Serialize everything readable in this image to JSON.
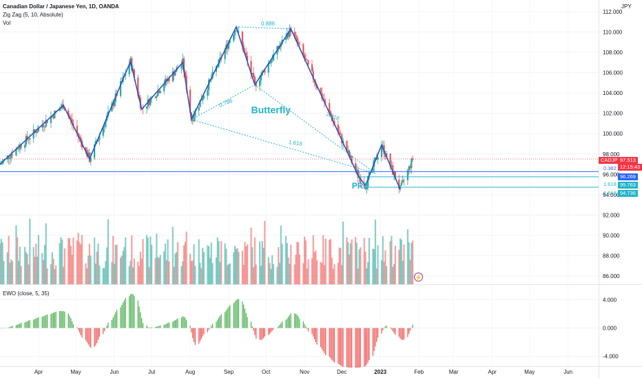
{
  "header": {
    "title": "Canadian Dollar / Japanese Yen, 1D, OANDA",
    "indicator_1": "Zig Zag (5, 10, Absolute)",
    "indicator_2": "Vol",
    "ewo_label": "EWO (close, 5, 35)",
    "currency": "JPY"
  },
  "price_tags": {
    "symbol": "CADJPY",
    "last_price": "97.513",
    "countdown": "12:15:43",
    "level_0382_label": "0.382",
    "level_0382_value": "96.269",
    "level_1618_label": "1.618",
    "level_1618_value": "95.763",
    "level_2618_label": "2.618",
    "level_2618_value": "94.736"
  },
  "annotations": {
    "pattern_name": "Butterfly",
    "prz": "PRZ",
    "ratio_top": "0.886",
    "ratio_xa": "0.786",
    "ratio_bc": "2.618",
    "ratio_xd": "1.618"
  },
  "colors": {
    "up": "#26a69a",
    "down": "#ef5350",
    "zigzag": "#1e56c8",
    "harmonic": "#21b3c8",
    "last_price": "#f23645",
    "level_blue": "#2962ff",
    "ewo_up": "#4caf50",
    "ewo_down": "#ef5350"
  },
  "chart_data": {
    "type": "candlestick",
    "price_axis": {
      "ylim": [
        85.2,
        112.8
      ],
      "ticks": [
        "112.000",
        "110.000",
        "108.000",
        "106.000",
        "104.000",
        "102.000",
        "100.000",
        "98.000",
        "96.000",
        "94.000",
        "92.000",
        "90.000",
        "88.000",
        "86.000"
      ],
      "tick_values": [
        112,
        110,
        108,
        106,
        104,
        102,
        100,
        98,
        96,
        94,
        92,
        90,
        88,
        86
      ]
    },
    "ewo_axis": {
      "ylim": [
        -5.0,
        5.5
      ],
      "ticks": [
        "4.000",
        "0.000",
        "-4.000"
      ],
      "tick_values": [
        4,
        0,
        -4
      ]
    },
    "x_axis": {
      "start_date": "2022-03-01",
      "end_date": "2023-06-25",
      "ticks": [
        "Apr",
        "May",
        "Jun",
        "Jul",
        "Aug",
        "Sep",
        "Oct",
        "Nov",
        "Dec",
        "2023",
        "Feb",
        "Mar",
        "Apr",
        "May",
        "Jun"
      ],
      "tick_dates": [
        "2022-04-01",
        "2022-05-01",
        "2022-06-01",
        "2022-07-01",
        "2022-08-01",
        "2022-09-01",
        "2022-10-01",
        "2022-11-01",
        "2022-12-01",
        "2023-01-01",
        "2023-02-01",
        "2023-03-01",
        "2023-04-01",
        "2023-05-01",
        "2023-06-01"
      ]
    },
    "zigzag": [
      [
        "2022-03-01",
        97.0
      ],
      [
        "2022-04-21",
        102.8
      ],
      [
        "2022-05-12",
        97.5
      ],
      [
        "2022-06-14",
        107.1
      ],
      [
        "2022-06-23",
        102.4
      ],
      [
        "2022-07-26",
        107.0
      ],
      [
        "2022-08-02",
        101.4
      ],
      [
        "2022-09-07",
        110.5
      ],
      [
        "2022-09-22",
        104.8
      ],
      [
        "2022-10-21",
        110.3
      ],
      [
        "2022-12-14",
        95.9
      ],
      [
        "2022-12-20",
        94.9
      ],
      [
        "2023-01-02",
        98.9
      ],
      [
        "2023-01-17",
        94.5
      ]
    ],
    "harmonic_lines": [
      {
        "from": [
          "2022-08-02",
          101.4
        ],
        "to": [
          "2022-09-22",
          104.8
        ]
      },
      {
        "from": [
          "2022-09-22",
          104.8
        ],
        "to": [
          "2022-12-28",
          96.1
        ]
      },
      {
        "from": [
          "2022-08-02",
          101.4
        ],
        "to": [
          "2022-12-28",
          96.1
        ]
      },
      {
        "from": [
          "2022-09-07",
          110.5
        ],
        "to": [
          "2022-10-21",
          110.3
        ]
      }
    ],
    "levels": {
      "last_price": 97.513,
      "level_0382": 96.269,
      "level_1618": 95.763,
      "level_2618": 94.736
    }
  }
}
